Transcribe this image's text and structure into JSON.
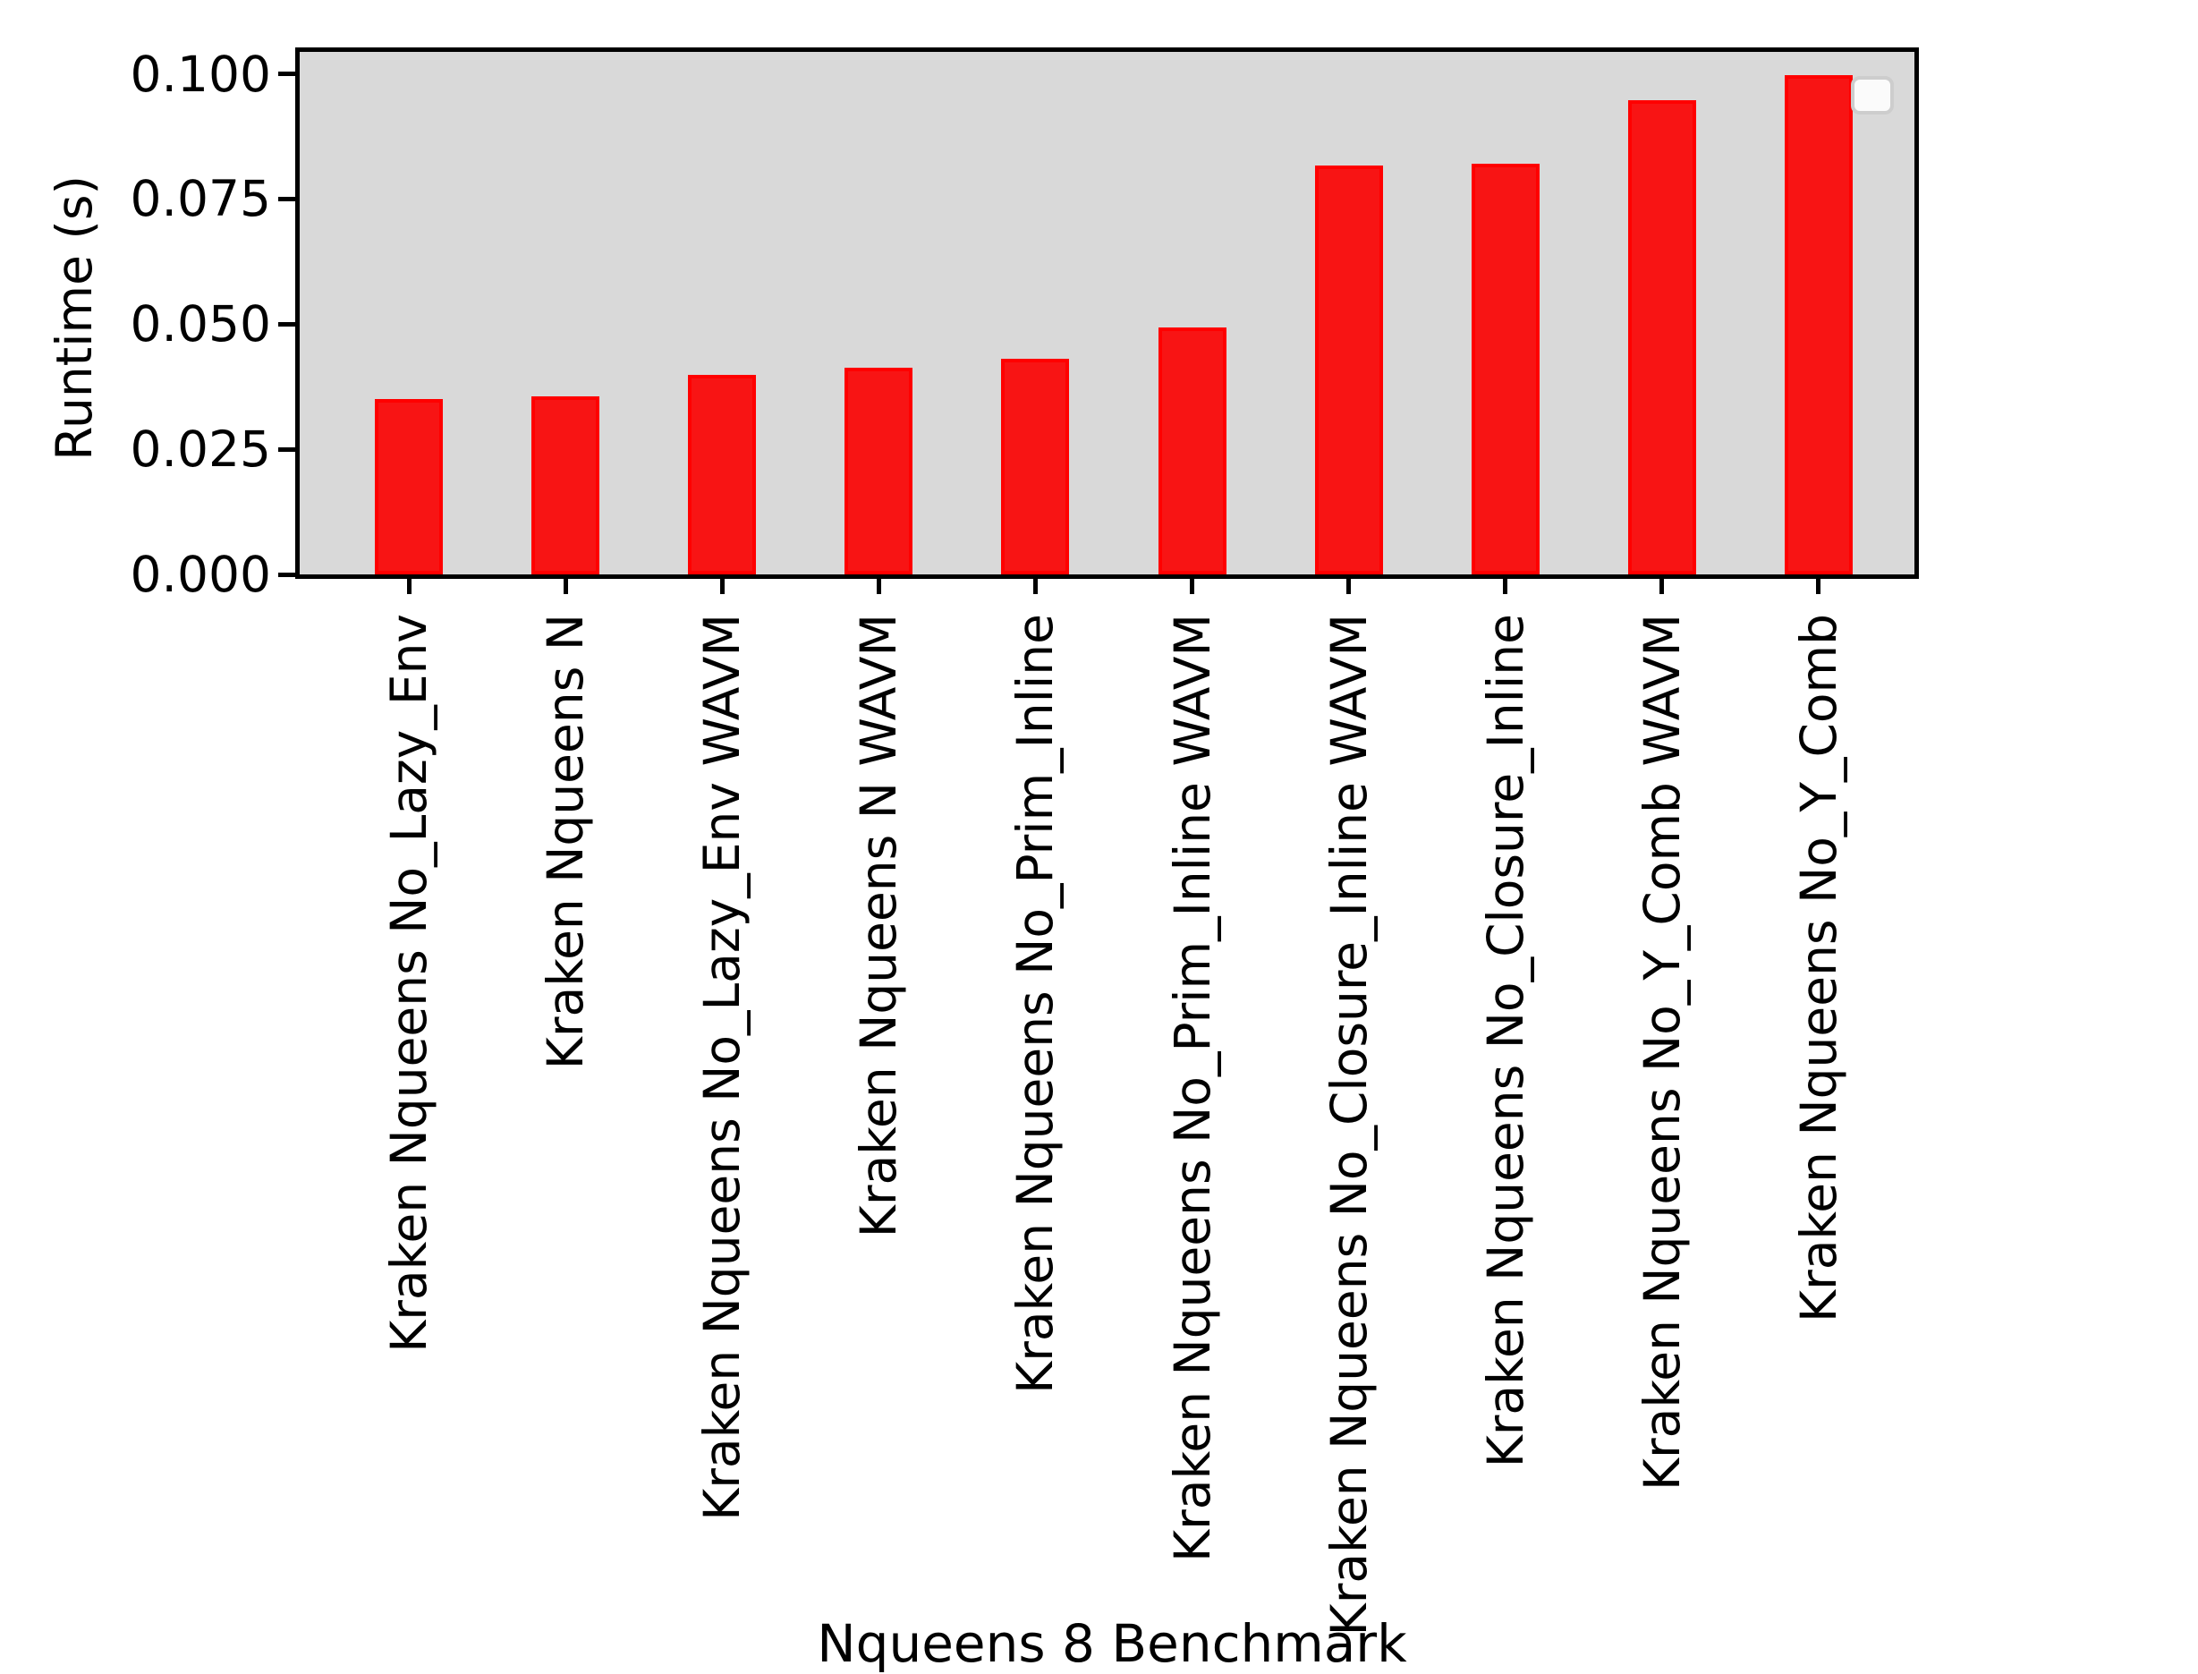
{
  "chart_data": {
    "type": "bar",
    "xlabel": "Nqueens 8 Benchmark",
    "ylabel": "Runtime (s)",
    "categories": [
      "Kraken Nqueens No_Lazy_Env",
      "Kraken Nqueens N",
      "Kraken Nqueens No_Lazy_Env WAVM",
      "Kraken Nqueens N WAVM",
      "Kraken Nqueens No_Prim_Inline",
      "Kraken Nqueens No_Prim_Inline WAVM",
      "Kraken Nqueens No_Closure_Inline WAVM",
      "Kraken Nqueens No_Closure_Inline",
      "Kraken Nqueens No_Y_Comb WAVM",
      "Kraken Nqueens No_Y_Comb"
    ],
    "values": [
      0.035,
      0.0355,
      0.0398,
      0.0412,
      0.0431,
      0.0493,
      0.0817,
      0.0821,
      0.0947,
      0.0998
    ],
    "ylim": [
      0.0,
      0.105
    ],
    "y_ticks": {
      "labels": [
        "0.000",
        "0.025",
        "0.050",
        "0.075",
        "0.100"
      ],
      "values": [
        0.0,
        0.025,
        0.05,
        0.075,
        0.1
      ]
    },
    "grid": false,
    "legend": "empty-box-top-right",
    "legend_position": "upper right"
  },
  "colors": {
    "bar_fill": "#f81414",
    "bar_edge": "#ff0000",
    "plot_bg": "#d9d9d9",
    "spine": "#000000",
    "figure_bg": "#ffffff",
    "legend_fill": "#fbfbfb",
    "legend_border": "#cdcdcd"
  }
}
